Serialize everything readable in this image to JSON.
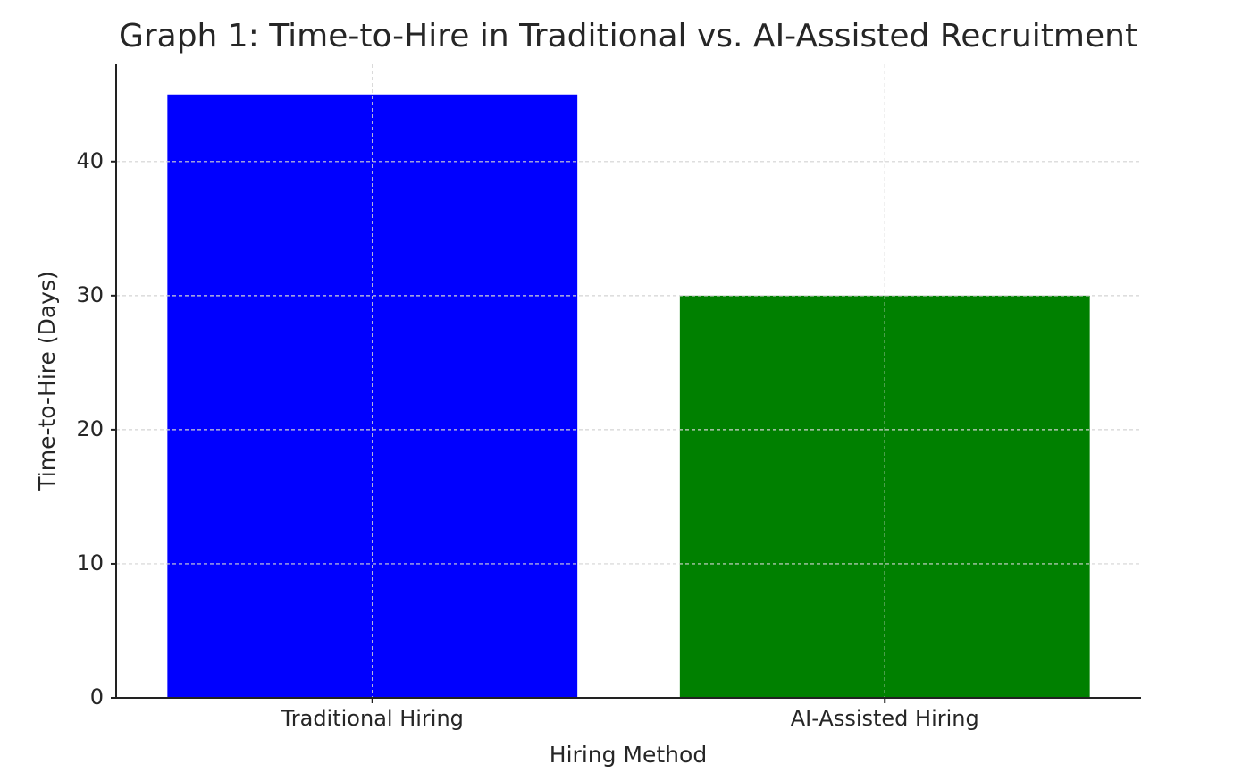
{
  "chart_data": {
    "type": "bar",
    "title": "Graph 1: Time-to-Hire in Traditional vs. AI-Assisted Recruitment",
    "x_label": "Hiring Method",
    "y_label": "Time-to-Hire (Days)",
    "categories": [
      "Traditional Hiring",
      "AI-Assisted Hiring"
    ],
    "values": [
      45,
      30
    ],
    "colors": [
      "#0000ff",
      "#008000"
    ],
    "ylim": [
      0,
      47.25
    ],
    "yticks": [
      0,
      10,
      20,
      30,
      40
    ],
    "grid": true
  }
}
